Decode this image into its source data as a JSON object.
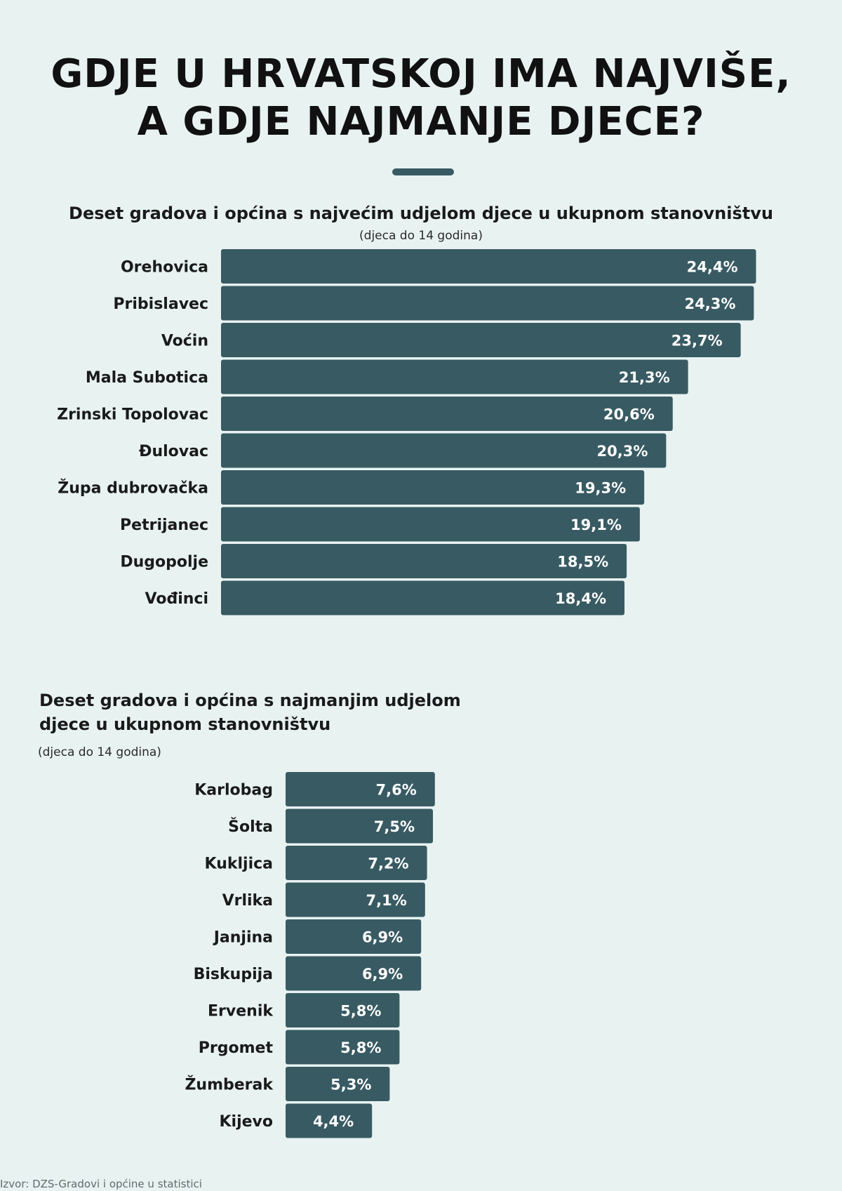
{
  "title": {
    "line1": "GDJE U HRVATSKOJ IMA NAJVIŠE,",
    "line2": "A GDJE NAJMANJE DJECE?"
  },
  "colors": {
    "background": "#e8f3f1",
    "bar": "#385a63",
    "bar_text": "#ffffff",
    "label_text": "#1a1a1a"
  },
  "chart_data": [
    {
      "type": "bar",
      "orientation": "horizontal",
      "title": "Deset gradova i općina s najvećim udjelom djece u ukupnom stanovništvu",
      "subtitle": "(djeca do 14 godina)",
      "categories": [
        "Orehovica",
        "Pribislavec",
        "Voćin",
        "Mala Subotica",
        "Zrinski Topolovac",
        "Đulovac",
        "Župa dubrovačka",
        "Petrijanec",
        "Dugopolje",
        "Vođinci"
      ],
      "values": [
        24.4,
        24.3,
        23.7,
        21.3,
        20.6,
        20.3,
        19.3,
        19.1,
        18.5,
        18.4
      ],
      "value_labels": [
        "24,4%",
        "24,3%",
        "23,7%",
        "21,3%",
        "20,6%",
        "20,3%",
        "19,3%",
        "19,1%",
        "18,5%",
        "18,4%"
      ],
      "unit": "%",
      "grid": false,
      "legend": "none"
    },
    {
      "type": "bar",
      "orientation": "horizontal",
      "title_lines": [
        "Deset gradova i općina s najmanjim udjelom",
        "djece u ukupnom stanovništvu"
      ],
      "subtitle": "(djeca do 14 godina)",
      "categories": [
        "Karlobag",
        "Šolta",
        "Kukljica",
        "Vrlika",
        "Janjina",
        "Biskupija",
        "Ervenik",
        "Prgomet",
        "Žumberak",
        "Kijevo"
      ],
      "values": [
        7.6,
        7.5,
        7.2,
        7.1,
        6.9,
        6.9,
        5.8,
        5.8,
        5.3,
        4.4
      ],
      "value_labels": [
        "7,6%",
        "7,5%",
        "7,2%",
        "7,1%",
        "6,9%",
        "6,9%",
        "5,8%",
        "5,8%",
        "5,3%",
        "4,4%"
      ],
      "unit": "%",
      "grid": false,
      "legend": "none"
    }
  ],
  "source": "Izvor: DZS-Gradovi i općine u statistici"
}
